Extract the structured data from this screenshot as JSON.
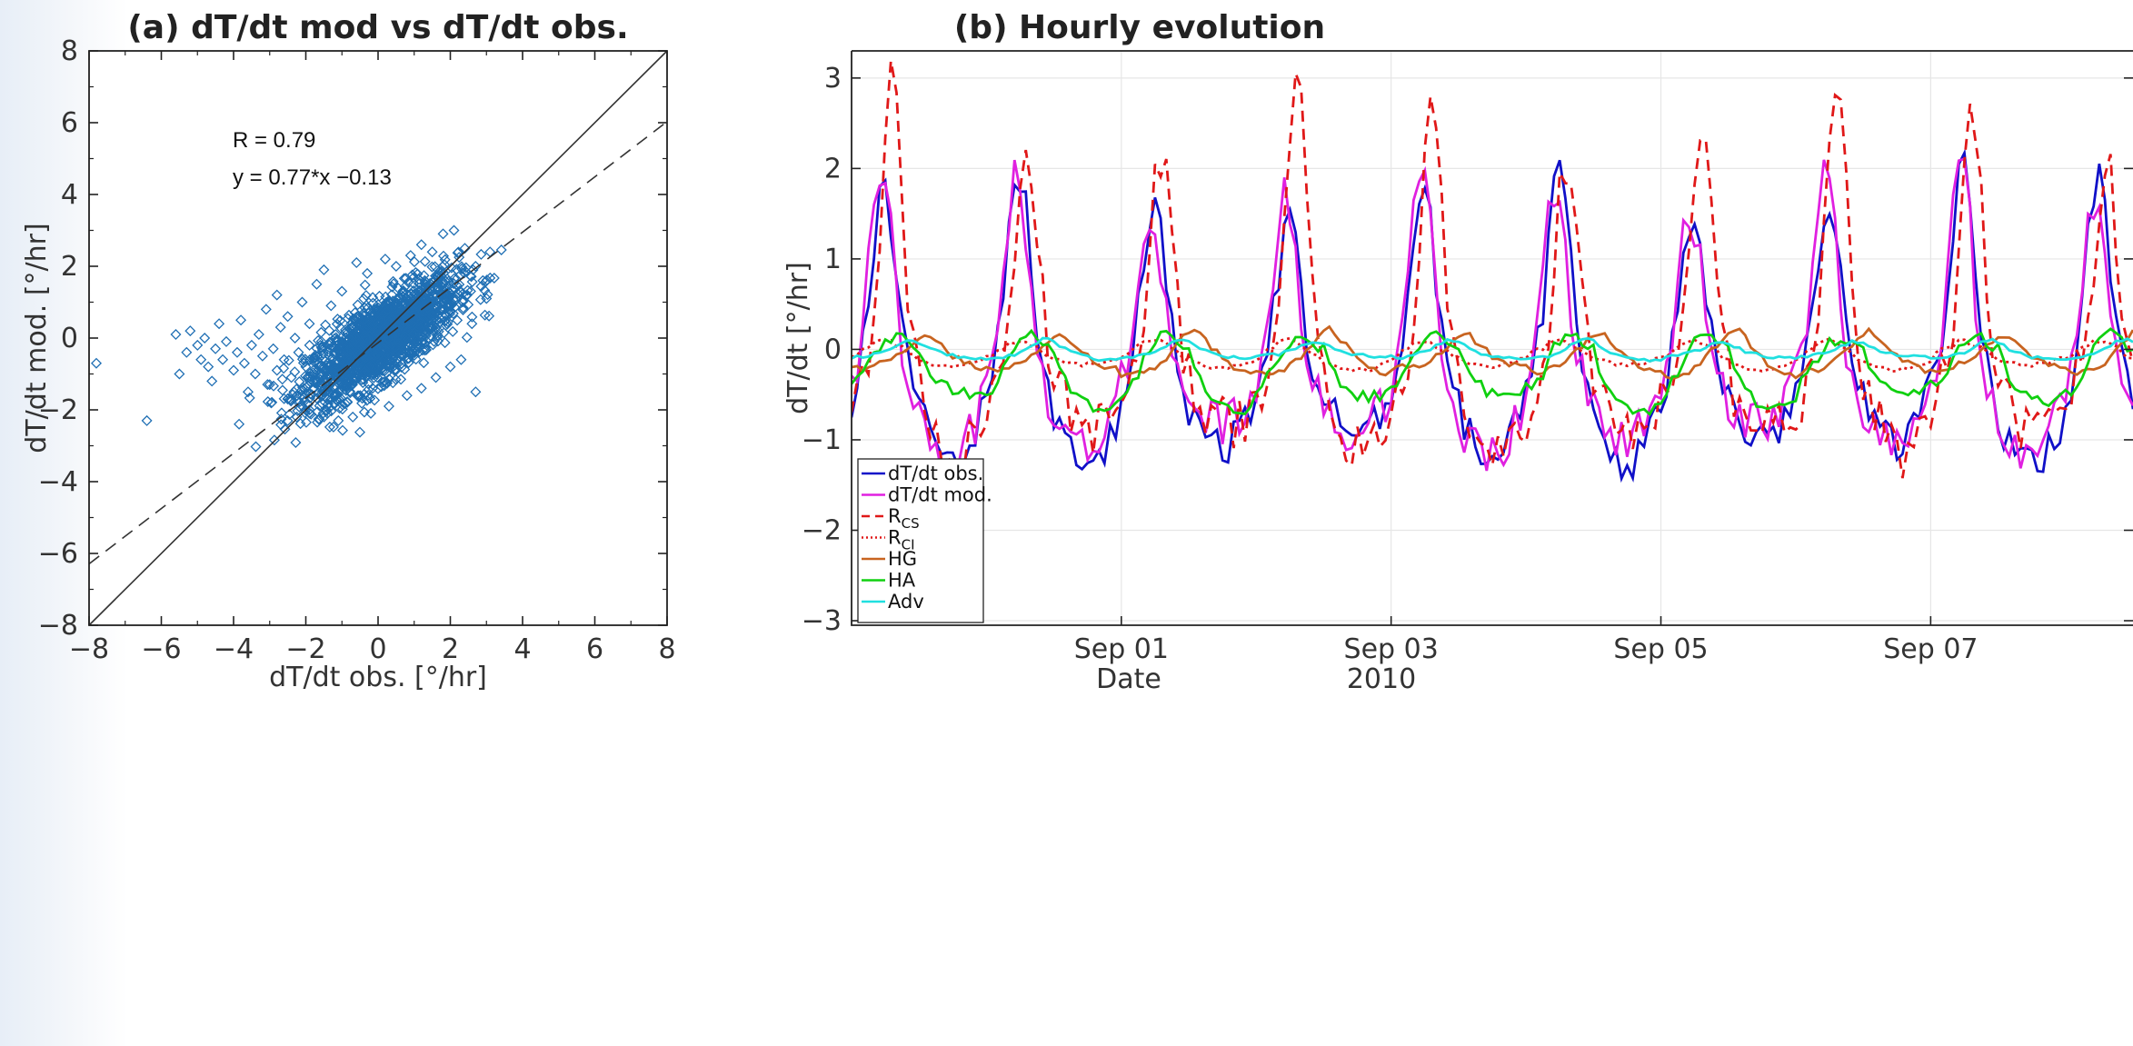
{
  "chart_data": [
    {
      "type": "scatter",
      "title": "(a) dT/dt mod vs dT/dt obs.",
      "xlabel": "dT/dt obs. [°/hr]",
      "ylabel": "dT/dt mod. [°/hr]",
      "xlim": [
        -8,
        8
      ],
      "ylim": [
        -8,
        8
      ],
      "xticks": [
        "−8",
        "−6",
        "−4",
        "−2",
        "0",
        "2",
        "4",
        "6",
        "8"
      ],
      "yticks": [
        "−8",
        "−6",
        "−4",
        "−2",
        "0",
        "2",
        "4",
        "6",
        "8"
      ],
      "grid": false,
      "marker_color": "#1f6fb4",
      "annotations": [
        "R =  0.79",
        "y = 0.77*x −0.13"
      ],
      "fit_line": {
        "slope": 0.77,
        "intercept": -0.13,
        "style": "dashed"
      },
      "one_to_one_line": {
        "style": "solid"
      },
      "points": [
        [
          -7.8,
          -0.7
        ],
        [
          -6.4,
          -2.3
        ],
        [
          -5.6,
          0.1
        ],
        [
          -5.5,
          -1.0
        ],
        [
          -5.3,
          -0.4
        ],
        [
          -5.2,
          0.2
        ],
        [
          -5.0,
          -0.2
        ],
        [
          -4.9,
          -0.6
        ],
        [
          -4.8,
          0.0
        ],
        [
          -4.7,
          -0.8
        ],
        [
          -4.6,
          -1.2
        ],
        [
          -4.5,
          -0.3
        ],
        [
          -4.4,
          0.4
        ],
        [
          -4.3,
          -0.6
        ],
        [
          -4.2,
          -0.1
        ],
        [
          -4.0,
          -0.9
        ],
        [
          -3.9,
          -0.4
        ],
        [
          -3.8,
          0.5
        ],
        [
          -3.7,
          -0.7
        ],
        [
          -3.6,
          -1.5
        ],
        [
          -3.5,
          -0.2
        ],
        [
          -3.4,
          -1.0
        ],
        [
          -3.3,
          0.1
        ],
        [
          -3.2,
          -0.5
        ],
        [
          -3.1,
          0.8
        ],
        [
          -3.0,
          -1.3
        ],
        [
          -2.9,
          -0.3
        ],
        [
          -2.8,
          1.2
        ],
        [
          -2.8,
          -0.9
        ],
        [
          -2.7,
          0.3
        ],
        [
          -2.6,
          -0.6
        ],
        [
          -2.5,
          -1.7
        ],
        [
          -2.5,
          0.6
        ],
        [
          -2.4,
          -1.1
        ],
        [
          -2.3,
          0.0
        ],
        [
          -2.2,
          -0.4
        ],
        [
          -2.1,
          1.0
        ],
        [
          -2.1,
          -1.9
        ],
        [
          -2.0,
          -0.8
        ],
        [
          -1.9,
          0.4
        ],
        [
          -1.8,
          -1.4
        ],
        [
          -1.7,
          1.5
        ],
        [
          -1.6,
          -0.2
        ],
        [
          -1.5,
          1.9
        ],
        [
          -1.4,
          -2.1
        ],
        [
          -1.3,
          0.9
        ],
        [
          -1.2,
          -1.6
        ],
        [
          -1.0,
          1.3
        ],
        [
          -0.6,
          2.1
        ],
        [
          -0.3,
          1.8
        ],
        [
          0.2,
          2.2
        ],
        [
          0.5,
          2.0
        ],
        [
          0.9,
          2.3
        ],
        [
          1.2,
          2.6
        ],
        [
          1.5,
          2.4
        ],
        [
          1.8,
          2.9
        ],
        [
          2.1,
          3.0
        ],
        [
          2.4,
          2.5
        ],
        [
          2.7,
          2.0
        ],
        [
          2.9,
          1.6
        ],
        [
          3.0,
          1.1
        ],
        [
          3.1,
          2.4
        ],
        [
          2.6,
          0.4
        ],
        [
          2.3,
          -0.6
        ],
        [
          2.0,
          -0.8
        ],
        [
          2.7,
          -1.5
        ],
        [
          1.6,
          -1.1
        ],
        [
          1.2,
          -1.4
        ],
        [
          0.8,
          -1.6
        ],
        [
          0.3,
          -1.9
        ],
        [
          -0.2,
          -2.1
        ],
        [
          -0.7,
          -2.2
        ],
        [
          -1.1,
          -2.3
        ],
        [
          -1.5,
          -2.2
        ],
        [
          -1.9,
          -2.0
        ]
      ],
      "cloud_points": 1800
    },
    {
      "type": "line",
      "title": "(b) Hourly evolution",
      "xlabel": "Date",
      "ylabel": "dT/dt [°/hr]",
      "ylim": [
        -3.05,
        3.3
      ],
      "xlim_days": [
        30.0,
        39.5
      ],
      "xticks": [
        {
          "day": 32,
          "label": "Sep 01"
        },
        {
          "day": 34,
          "label": "Sep 03"
        },
        {
          "day": 36,
          "label": "Sep 05"
        },
        {
          "day": 38,
          "label": "Sep 07"
        }
      ],
      "year_label": "2010",
      "yticks": [
        "−3",
        "−2",
        "−1",
        "0",
        "1",
        "2",
        "3"
      ],
      "grid": true,
      "legend_position": "bottom-left",
      "series": [
        {
          "name": "dT/dt obs.",
          "color": "#1010c8",
          "dash": "solid",
          "peak": 1.7,
          "trough": -1.1,
          "phase": 0.0
        },
        {
          "name": "dT/dt mod.",
          "color": "#e020e0",
          "dash": "solid",
          "peak": 1.8,
          "trough": -1.0,
          "phase": -0.02
        },
        {
          "name": "R",
          "sub": "CS",
          "color": "#e01818",
          "dash": "dashed",
          "peak": 2.5,
          "trough": -0.95,
          "phase": 0.06
        },
        {
          "name": "R",
          "sub": "CI",
          "color": "#e01818",
          "dash": "dotted",
          "peak": 0.1,
          "trough": -0.2,
          "phase": 0.0
        },
        {
          "name": "HG",
          "color": "#c86420",
          "dash": "solid",
          "peak": 0.2,
          "trough": -0.25,
          "phase": 0.3
        },
        {
          "name": "HA",
          "color": "#10d010",
          "dash": "solid",
          "peak": 0.15,
          "trough": -0.6,
          "phase": 0.1
        },
        {
          "name": "Adv",
          "color": "#20e0e0",
          "dash": "solid",
          "peak": 0.1,
          "trough": -0.1,
          "phase": 0.2
        }
      ]
    }
  ]
}
